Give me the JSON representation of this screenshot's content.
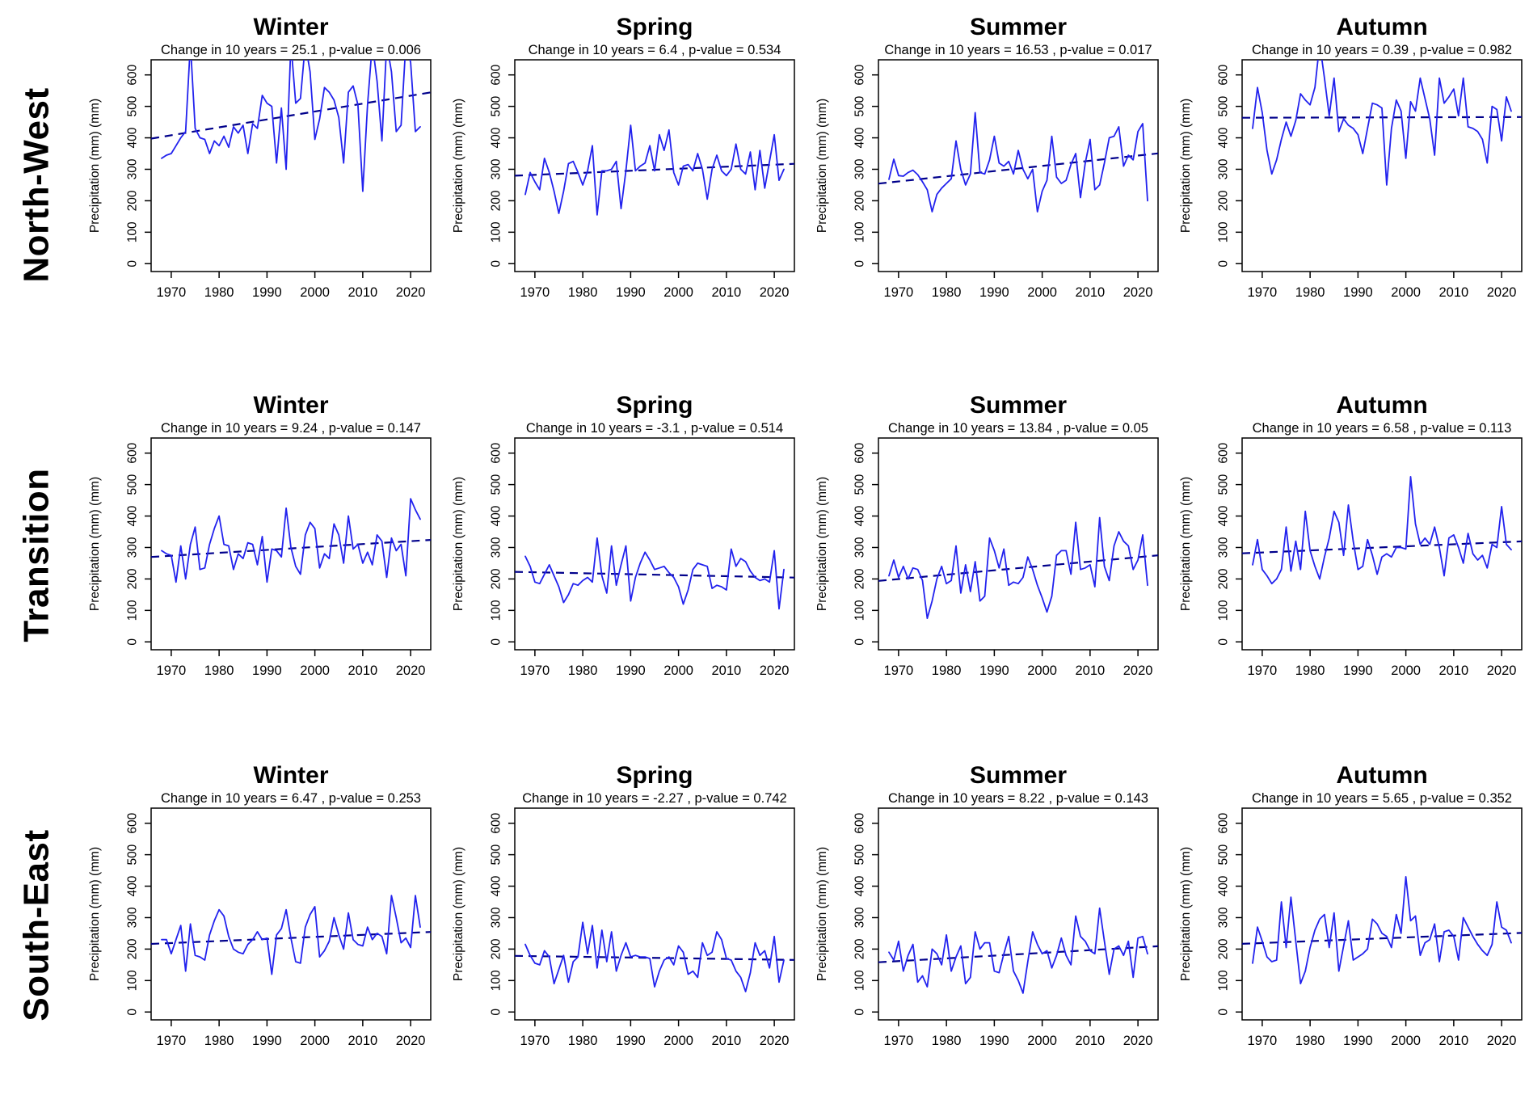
{
  "colors": {
    "background": "#ffffff",
    "series_line": "#2222ee",
    "trend_line": "#00008b",
    "axis": "#000000",
    "text": "#000000"
  },
  "chart_data": {
    "type": "line",
    "ylabel": "Precipitation (mm) (mm)",
    "year_start": 1968,
    "year_end": 2022,
    "axes": {
      "x_ticks": [
        1970,
        1980,
        1990,
        2000,
        2010,
        2020
      ],
      "y_ticks": [
        0,
        100,
        200,
        300,
        400,
        500,
        600
      ],
      "x_range": [
        1965.8,
        2024.2
      ],
      "y_range": [
        -25,
        648
      ]
    },
    "rows": [
      {
        "region": "North-West",
        "charts": [
          {
            "title": "Winter",
            "subtitle": "Change in 10 years = 25.1 , p-value = 0.006",
            "change_per_10y": 25.1,
            "p_value": 0.006,
            "trend": {
              "start": 403,
              "end": 539
            },
            "values": [
              335,
              345,
              350,
              375,
              400,
              420,
              700,
              430,
              400,
              395,
              350,
              390,
              375,
              405,
              370,
              435,
              415,
              440,
              350,
              445,
              430,
              535,
              510,
              500,
              320,
              495,
              300,
              700,
              510,
              525,
              700,
              610,
              395,
              460,
              560,
              545,
              520,
              465,
              320,
              545,
              565,
              505,
              230,
              505,
              700,
              580,
              390,
              700,
              610,
              420,
              440,
              700,
              640,
              420,
              435
            ]
          },
          {
            "title": "Spring",
            "subtitle": "Change in 10 years = 6.4 , p-value = 0.534",
            "change_per_10y": 6.4,
            "p_value": 0.534,
            "trend": {
              "start": 281,
              "end": 316
            },
            "values": [
              220,
              290,
              260,
              235,
              335,
              290,
              230,
              160,
              230,
              318,
              325,
              290,
              250,
              295,
              375,
              155,
              295,
              295,
              300,
              325,
              175,
              295,
              440,
              295,
              310,
              320,
              375,
              295,
              410,
              360,
              425,
              290,
              250,
              310,
              315,
              295,
              350,
              300,
              205,
              300,
              345,
              295,
              280,
              300,
              380,
              300,
              285,
              355,
              235,
              360,
              240,
              325,
              410,
              265,
              300
            ]
          },
          {
            "title": "Summer",
            "subtitle": "Change in 10 years = 16.53 , p-value = 0.017",
            "change_per_10y": 16.53,
            "p_value": 0.017,
            "trend": {
              "start": 258,
              "end": 347
            },
            "values": [
              268,
              332,
              280,
              278,
              290,
              297,
              283,
              260,
              235,
              165,
              220,
              240,
              255,
              270,
              390,
              300,
              250,
              285,
              480,
              290,
              285,
              330,
              405,
              320,
              310,
              325,
              285,
              360,
              300,
              270,
              300,
              165,
              230,
              265,
              405,
              275,
              255,
              265,
              315,
              350,
              210,
              320,
              395,
              235,
              250,
              320,
              400,
              405,
              435,
              310,
              345,
              330,
              420,
              445,
              200
            ]
          },
          {
            "title": "Autumn",
            "subtitle": "Change in 10 years = 0.39 , p-value = 0.982",
            "change_per_10y": 0.39,
            "p_value": 0.982,
            "trend": {
              "start": 464,
              "end": 466
            },
            "values": [
              430,
              560,
              480,
              360,
              285,
              330,
              395,
              450,
              405,
              455,
              540,
              520,
              505,
              560,
              700,
              590,
              470,
              590,
              420,
              460,
              440,
              430,
              410,
              350,
              430,
              510,
              505,
              495,
              250,
              430,
              520,
              485,
              335,
              515,
              485,
              590,
              525,
              460,
              345,
              590,
              510,
              530,
              555,
              470,
              590,
              435,
              430,
              420,
              395,
              320,
              500,
              490,
              390,
              530,
              485
            ]
          }
        ]
      },
      {
        "region": "Transition",
        "charts": [
          {
            "title": "Winter",
            "subtitle": "Change in 10 years = 9.24 , p-value = 0.147",
            "change_per_10y": 9.24,
            "p_value": 0.147,
            "trend": {
              "start": 272,
              "end": 322
            },
            "values": [
              290,
              280,
              275,
              190,
              305,
              200,
              310,
              365,
              230,
              235,
              310,
              360,
              400,
              310,
              305,
              230,
              280,
              265,
              315,
              310,
              245,
              335,
              190,
              295,
              290,
              270,
              425,
              300,
              240,
              215,
              340,
              380,
              360,
              235,
              280,
              265,
              375,
              340,
              250,
              400,
              295,
              310,
              250,
              285,
              245,
              340,
              320,
              205,
              330,
              290,
              310,
              210,
              455,
              420,
              390
            ]
          },
          {
            "title": "Spring",
            "subtitle": "Change in 10 years = -3.1 , p-value = 0.514",
            "change_per_10y": -3.1,
            "p_value": 0.514,
            "trend": {
              "start": 222,
              "end": 205
            },
            "values": [
              272,
              240,
              190,
              185,
              215,
              245,
              210,
              175,
              125,
              150,
              185,
              180,
              195,
              205,
              190,
              330,
              210,
              155,
              305,
              180,
              245,
              305,
              130,
              205,
              250,
              285,
              260,
              230,
              235,
              240,
              220,
              205,
              175,
              120,
              165,
              230,
              250,
              245,
              240,
              170,
              180,
              175,
              165,
              295,
              240,
              265,
              255,
              225,
              205,
              195,
              200,
              190,
              290,
              105,
              230
            ]
          },
          {
            "title": "Summer",
            "subtitle": "Change in 10 years = 13.84 , p-value = 0.05",
            "change_per_10y": 13.84,
            "p_value": 0.05,
            "trend": {
              "start": 197,
              "end": 272
            },
            "values": [
              210,
              260,
              205,
              240,
              200,
              235,
              230,
              195,
              75,
              130,
              200,
              240,
              185,
              195,
              305,
              155,
              245,
              160,
              255,
              130,
              145,
              330,
              290,
              235,
              295,
              180,
              190,
              185,
              205,
              270,
              230,
              180,
              140,
              95,
              145,
              275,
              290,
              290,
              215,
              380,
              230,
              235,
              245,
              175,
              395,
              240,
              195,
              305,
              350,
              320,
              305,
              230,
              260,
              340,
              180
            ]
          },
          {
            "title": "Autumn",
            "subtitle": "Change in 10 years = 6.58 , p-value = 0.113",
            "change_per_10y": 6.58,
            "p_value": 0.113,
            "trend": {
              "start": 283,
              "end": 318
            },
            "values": [
              245,
              325,
              230,
              210,
              185,
              200,
              230,
              365,
              225,
              320,
              230,
              415,
              290,
              240,
              200,
              270,
              330,
              415,
              380,
              275,
              435,
              320,
              230,
              240,
              325,
              275,
              215,
              270,
              280,
              270,
              300,
              300,
              295,
              525,
              375,
              310,
              330,
              310,
              365,
              300,
              210,
              330,
              340,
              300,
              250,
              345,
              280,
              260,
              275,
              235,
              310,
              300,
              430,
              310,
              293
            ]
          }
        ]
      },
      {
        "region": "South-East",
        "charts": [
          {
            "title": "Winter",
            "subtitle": "Change in 10 years = 6.47 , p-value = 0.253",
            "change_per_10y": 6.47,
            "p_value": 0.253,
            "trend": {
              "start": 218,
              "end": 253
            },
            "values": [
              230,
              230,
              185,
              230,
              275,
              130,
              280,
              180,
              175,
              165,
              245,
              290,
              325,
              305,
              240,
              200,
              190,
              185,
              215,
              230,
              255,
              230,
              235,
              120,
              245,
              265,
              325,
              235,
              160,
              155,
              270,
              310,
              335,
              175,
              195,
              225,
              300,
              245,
              200,
              315,
              230,
              215,
              210,
              270,
              230,
              250,
              240,
              185,
              370,
              300,
              220,
              235,
              205,
              370,
              270
            ]
          },
          {
            "title": "Spring",
            "subtitle": "Change in 10 years = -2.27 , p-value = 0.742",
            "change_per_10y": -2.27,
            "p_value": 0.742,
            "trend": {
              "start": 178,
              "end": 166
            },
            "values": [
              215,
              180,
              155,
              150,
              195,
              175,
              90,
              135,
              180,
              95,
              160,
              175,
              285,
              185,
              275,
              140,
              260,
              160,
              255,
              130,
              180,
              220,
              175,
              180,
              175,
              175,
              170,
              80,
              130,
              165,
              175,
              150,
              210,
              190,
              120,
              130,
              110,
              220,
              180,
              190,
              255,
              230,
              170,
              165,
              130,
              110,
              65,
              125,
              220,
              180,
              195,
              140,
              240,
              95,
              165
            ]
          },
          {
            "title": "Summer",
            "subtitle": "Change in 10 years = 8.22 , p-value = 0.143",
            "change_per_10y": 8.22,
            "p_value": 0.143,
            "trend": {
              "start": 160,
              "end": 207
            },
            "values": [
              190,
              165,
              225,
              130,
              180,
              215,
              95,
              115,
              80,
              200,
              185,
              150,
              245,
              130,
              175,
              210,
              90,
              110,
              255,
              200,
              220,
              220,
              130,
              125,
              185,
              240,
              130,
              100,
              60,
              160,
              255,
              215,
              185,
              195,
              140,
              180,
              235,
              180,
              150,
              305,
              240,
              225,
              195,
              185,
              330,
              225,
              120,
              200,
              210,
              180,
              225,
              110,
              235,
              240,
              185
            ]
          },
          {
            "title": "Autumn",
            "subtitle": "Change in 10 years = 5.65 , p-value = 0.352",
            "change_per_10y": 5.65,
            "p_value": 0.352,
            "trend": {
              "start": 218,
              "end": 250
            },
            "values": [
              155,
              270,
              225,
              175,
              160,
              165,
              350,
              205,
              365,
              225,
              90,
              130,
              205,
              260,
              295,
              310,
              205,
              315,
              130,
              210,
              290,
              165,
              175,
              185,
              200,
              295,
              280,
              250,
              240,
              205,
              310,
              250,
              430,
              290,
              305,
              180,
              220,
              230,
              280,
              160,
              255,
              260,
              240,
              165,
              300,
              270,
              240,
              215,
              195,
              180,
              215,
              350,
              270,
              260,
              220
            ]
          }
        ]
      }
    ]
  }
}
